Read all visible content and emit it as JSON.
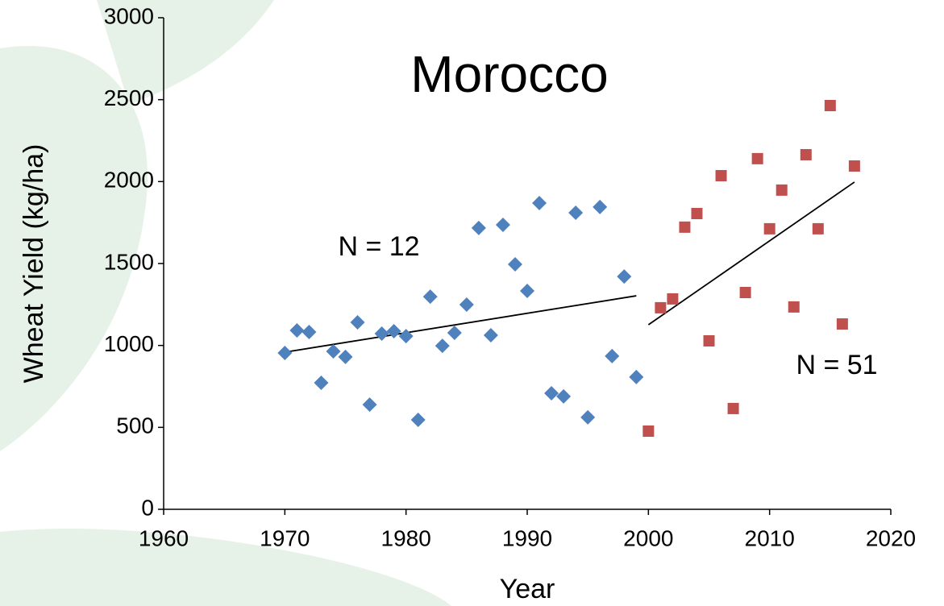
{
  "chart_data": {
    "type": "scatter",
    "title": "Morocco",
    "x_label": "Year",
    "y_label": "Wheat Yield (kg/ha)",
    "annotations": [
      "N = 12",
      "N = 51"
    ],
    "xlim": [
      1960,
      2020
    ],
    "xticks": [
      1960,
      1970,
      1980,
      1990,
      2000,
      2010,
      2020
    ],
    "ylim": [
      0,
      3000
    ],
    "yticks": [
      0,
      500,
      1000,
      1500,
      2000,
      2500,
      3000
    ],
    "grid": false,
    "series": [
      {
        "color": "#4f81bd",
        "marker": "diamond",
        "x": [
          1970,
          1971,
          1972,
          1973,
          1974,
          1975,
          1976,
          1977,
          1978,
          1979,
          1980,
          1981,
          1982,
          1983,
          1984,
          1985,
          1986,
          1987,
          1988,
          1989,
          1990,
          1991,
          1992,
          1993,
          1994,
          1995,
          1996,
          1997,
          1998,
          1999
        ],
        "values": [
          954,
          1092,
          1082,
          772,
          964,
          930,
          1141,
          639,
          1072,
          1087,
          1057,
          546,
          1298,
          998,
          1077,
          1249,
          1717,
          1062,
          1736,
          1495,
          1333,
          1869,
          708,
          689,
          1810,
          561,
          1845,
          935,
          1421,
          807
        ]
      },
      {
        "color": "#c0504d",
        "marker": "square",
        "x": [
          2000,
          2001,
          2002,
          2003,
          2004,
          2005,
          2006,
          2007,
          2008,
          2009,
          2010,
          2011,
          2012,
          2013,
          2014,
          2015,
          2016,
          2017
        ],
        "values": [
          477,
          1230,
          1284,
          1722,
          1805,
          1028,
          2036,
          615,
          1323,
          2140,
          1712,
          1948,
          1235,
          2164,
          1712,
          2464,
          1131,
          2095
        ]
      }
    ],
    "trend_lines": [
      {
        "color": "#000000",
        "x": [
          1970,
          1999
        ],
        "values": [
          959,
          1303
        ]
      },
      {
        "color": "#000000",
        "x": [
          2000,
          2017
        ],
        "values": [
          1126,
          1997
        ]
      }
    ]
  }
}
